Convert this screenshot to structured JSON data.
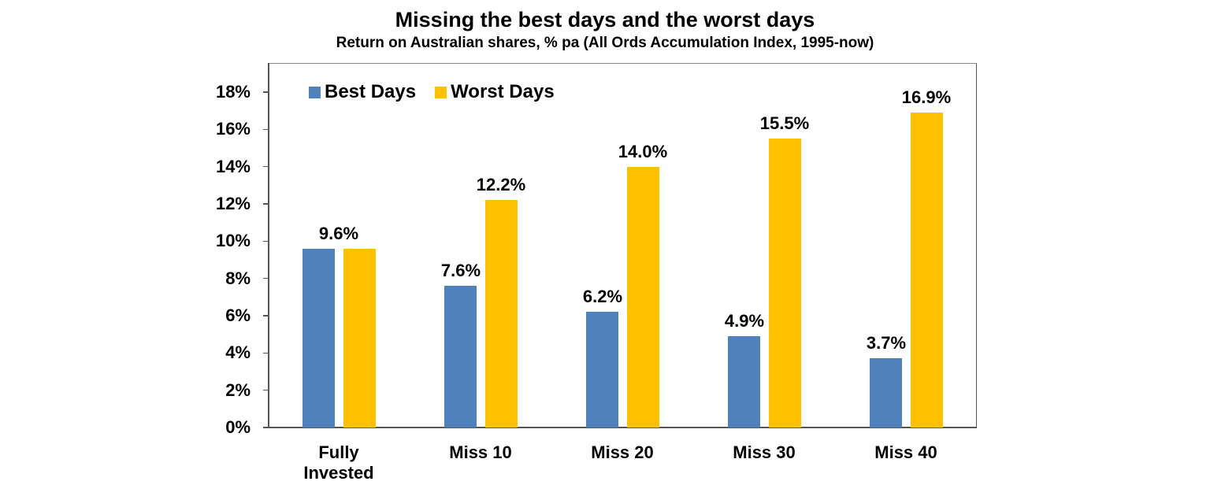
{
  "header": {
    "title": "Missing the best days and the worst days",
    "subtitle": "Return on Australian shares, % pa (All Ords Accumulation Index, 1995-now)"
  },
  "legend": [
    {
      "label": "Best Days",
      "color": "#4F81BD"
    },
    {
      "label": "Worst Days",
      "color": "#FFC000"
    }
  ],
  "y_ticks": [
    "0%",
    "2%",
    "4%",
    "6%",
    "8%",
    "10%",
    "12%",
    "14%",
    "16%",
    "18%"
  ],
  "categories": [
    "Fully\nInvested",
    "Miss 10",
    "Miss 20",
    "Miss 30",
    "Miss 40"
  ],
  "value_labels": {
    "fully_invested": "9.6%",
    "best": [
      "",
      "7.6%",
      "6.2%",
      "4.9%",
      "3.7%"
    ],
    "worst": [
      "",
      "12.2%",
      "14.0%",
      "15.5%",
      "16.9%"
    ]
  },
  "chart_data": {
    "type": "bar",
    "title": "Missing the best days and the worst days",
    "subtitle": "Return on Australian shares, % pa (All Ords Accumulation Index, 1995-now)",
    "categories": [
      "Fully Invested",
      "Miss 10",
      "Miss 20",
      "Miss 30",
      "Miss 40"
    ],
    "series": [
      {
        "name": "Best Days",
        "color": "#4F81BD",
        "values": [
          9.6,
          7.6,
          6.2,
          4.9,
          3.7
        ]
      },
      {
        "name": "Worst Days",
        "color": "#FFC000",
        "values": [
          9.6,
          12.2,
          14.0,
          15.5,
          16.9
        ]
      }
    ],
    "data_labels": {
      "Fully Invested": "9.6%",
      "Best Days": [
        "7.6%",
        "6.2%",
        "4.9%",
        "3.7%"
      ],
      "Worst Days": [
        "12.2%",
        "14.0%",
        "15.5%",
        "16.9%"
      ]
    },
    "xlabel": "",
    "ylabel": "",
    "ylim": [
      0,
      18
    ],
    "y_tick_step": 2,
    "y_tick_format": "percent",
    "grid": false,
    "legend_position": "top-left inside plot"
  }
}
